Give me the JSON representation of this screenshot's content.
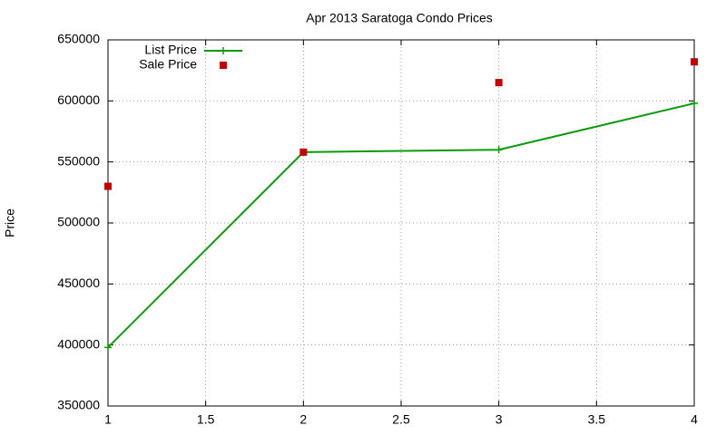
{
  "chart_data": {
    "type": "line",
    "title": "Apr 2013 Saratoga Condo Prices",
    "y_label": "Price",
    "x": [
      1,
      2,
      3,
      4
    ],
    "series": [
      {
        "name": "List Price",
        "color": "#0a9a0a",
        "style": "linespoints",
        "values": [
          398000,
          558000,
          560000,
          598000
        ]
      },
      {
        "name": "Sale Price",
        "color": "#c00000",
        "style": "points",
        "values": [
          530000,
          558000,
          615000,
          632000
        ]
      }
    ],
    "xlim": [
      1,
      4
    ],
    "xticks": [
      1,
      1.5,
      2,
      2.5,
      3,
      3.5,
      4
    ],
    "ylim": [
      350000,
      650000
    ],
    "yticks": [
      350000,
      400000,
      450000,
      500000,
      550000,
      600000,
      650000
    ],
    "grid": true,
    "legend": "top-left"
  }
}
